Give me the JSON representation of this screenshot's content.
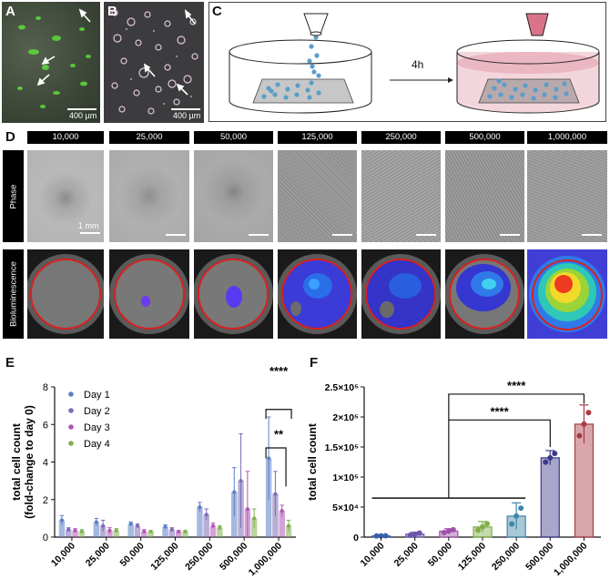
{
  "panels": {
    "a": {
      "label": "A",
      "scale": "400 µm"
    },
    "b": {
      "label": "B",
      "scale": "400 µm"
    },
    "c": {
      "label": "C",
      "time": "4h"
    },
    "d": {
      "label": "D",
      "columns": [
        "10,000",
        "25,000",
        "50,000",
        "125,000",
        "250,000",
        "500,000",
        "1,000,000"
      ],
      "rows": [
        "Phase",
        "Bioluminescence"
      ],
      "scale": "1 mm"
    },
    "e": {
      "label": "E"
    },
    "f": {
      "label": "F"
    }
  },
  "colors": {
    "day1": "#5b7fc7",
    "day2": "#7e6bb8",
    "day3": "#b356b3",
    "day4": "#7fb050",
    "f_bars": [
      "#3a5fa8",
      "#6a55a8",
      "#a050a8",
      "#7fae48",
      "#3f86a8",
      "#3d3a8a",
      "#a83a44"
    ]
  },
  "chart_data": [
    {
      "type": "bar",
      "panel": "E",
      "ylabel": "total cell count\n(fold-change to day 0)",
      "ylabel_line1": "total cell count",
      "ylabel_line2": "(fold-change to day 0)",
      "categories": [
        "10,000",
        "25,000",
        "50,000",
        "125,000",
        "250,000",
        "500,000",
        "1,000,000"
      ],
      "ylim": [
        0,
        8
      ],
      "yticks": [
        "0",
        "2",
        "4",
        "6",
        "8"
      ],
      "legend_position": "top-left",
      "series": [
        {
          "name": "Day 1",
          "values": [
            0.9,
            0.8,
            0.7,
            0.55,
            1.6,
            2.4,
            4.2
          ],
          "errors": [
            0.25,
            0.2,
            0.1,
            0.1,
            0.25,
            1.3,
            2.2
          ]
        },
        {
          "name": "Day 2",
          "values": [
            0.4,
            0.6,
            0.6,
            0.4,
            1.2,
            3.0,
            2.3
          ],
          "errors": [
            0.1,
            0.3,
            0.1,
            0.1,
            0.3,
            2.5,
            1.2
          ]
        },
        {
          "name": "Day 3",
          "values": [
            0.35,
            0.35,
            0.3,
            0.3,
            0.6,
            1.5,
            1.4
          ],
          "errors": [
            0.1,
            0.15,
            0.1,
            0.05,
            0.15,
            2.0,
            0.3
          ]
        },
        {
          "name": "Day 4",
          "values": [
            0.3,
            0.35,
            0.3,
            0.3,
            0.5,
            1.0,
            0.6
          ],
          "errors": [
            0.1,
            0.1,
            0.05,
            0.05,
            0.1,
            0.5,
            0.3
          ]
        }
      ],
      "annotations": [
        "****",
        "**"
      ]
    },
    {
      "type": "bar",
      "panel": "F",
      "ylabel": "total cell count",
      "categories": [
        "10,000",
        "25,000",
        "50,000",
        "125,000",
        "250,000",
        "500,000",
        "1,000,000"
      ],
      "values": [
        2000,
        5000,
        10000,
        17000,
        35000,
        132000,
        188000
      ],
      "errors": [
        300,
        3000,
        4000,
        9000,
        22000,
        12000,
        32000
      ],
      "ylim": [
        0,
        250000
      ],
      "yticks": [
        "0",
        "5×10⁴",
        "1×10⁵",
        "1.5×10⁵",
        "2×10⁵",
        "2.5×10⁵"
      ],
      "annotations": [
        "****",
        "****"
      ]
    }
  ]
}
